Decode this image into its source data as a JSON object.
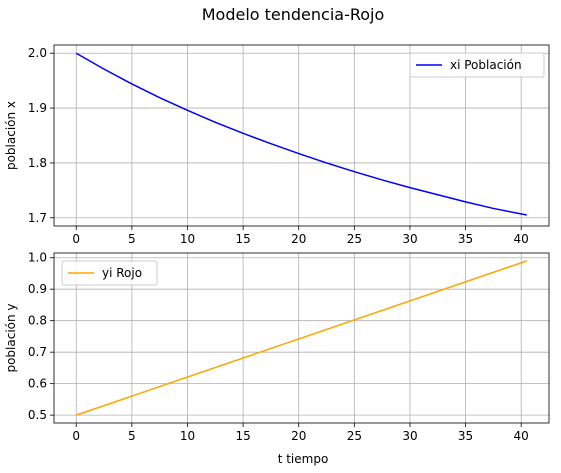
{
  "chart_data": {
    "type": "line",
    "title": "Modelo tendencia-Rojo",
    "xlabel": "t tiempo",
    "subplots": [
      {
        "ylabel": "población x",
        "xlim": [
          -2.0,
          42.5
        ],
        "ylim": [
          1.685,
          2.015
        ],
        "xticks": [
          0,
          5,
          10,
          15,
          20,
          25,
          30,
          35,
          40
        ],
        "yticks": [
          1.7,
          1.8,
          1.9,
          2.0
        ],
        "ytick_labels": [
          "1.7",
          "1.8",
          "1.9",
          "2.0"
        ],
        "grid": true,
        "legend_position": "upper right",
        "series": [
          {
            "name": "xi Población",
            "color": "#0000ff",
            "x": [
              0,
              2.5,
              5,
              7.5,
              10,
              12.5,
              15,
              17.5,
              20,
              22.5,
              25,
              27.5,
              30,
              32.5,
              35,
              37.5,
              40.5
            ],
            "y": [
              2.0,
              1.971,
              1.944,
              1.919,
              1.896,
              1.874,
              1.854,
              1.835,
              1.817,
              1.8,
              1.784,
              1.769,
              1.755,
              1.742,
              1.729,
              1.717,
              1.705
            ]
          }
        ]
      },
      {
        "ylabel": "población y",
        "xlim": [
          -2.0,
          42.5
        ],
        "ylim": [
          0.475,
          1.015
        ],
        "xticks": [
          0,
          5,
          10,
          15,
          20,
          25,
          30,
          35,
          40
        ],
        "yticks": [
          0.5,
          0.6,
          0.7,
          0.8,
          0.9,
          1.0
        ],
        "ytick_labels": [
          "0.5",
          "0.6",
          "0.7",
          "0.8",
          "0.9",
          "1.0"
        ],
        "grid": true,
        "legend_position": "upper left",
        "series": [
          {
            "name": "yi Rojo",
            "color": "#ffa500",
            "x": [
              0,
              40.5
            ],
            "y": [
              0.5,
              0.99
            ]
          }
        ]
      }
    ]
  }
}
